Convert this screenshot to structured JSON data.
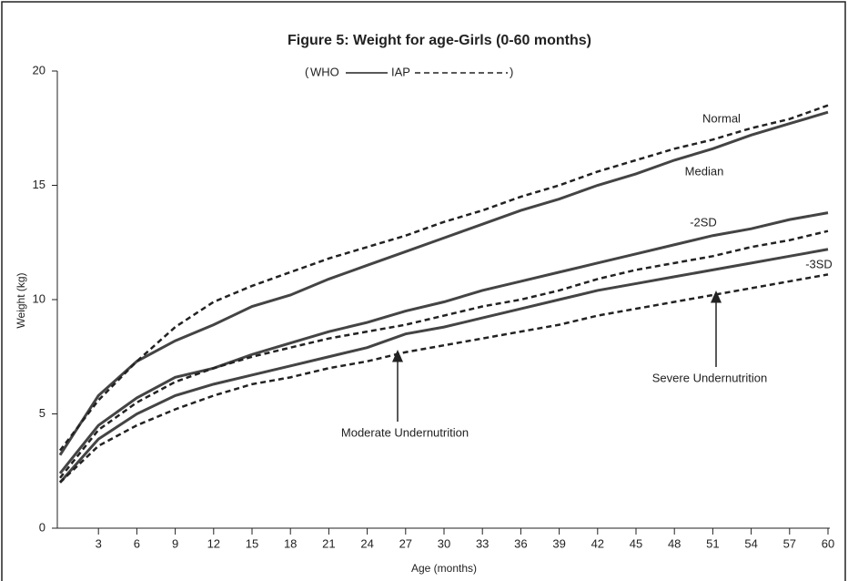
{
  "chart_data": {
    "type": "line",
    "title": "Figure 5: Weight for age-Girls (0-60 months)",
    "legend_wrap": [
      "(",
      ")"
    ],
    "legend": [
      {
        "label": "WHO",
        "style": "solid"
      },
      {
        "label": "IAP",
        "style": "dashed"
      }
    ],
    "x_label": "Age (months)",
    "y_label": "Weight (kg)",
    "x": [
      0,
      3,
      6,
      9,
      12,
      15,
      18,
      21,
      24,
      27,
      30,
      33,
      36,
      39,
      42,
      45,
      48,
      51,
      54,
      57,
      60
    ],
    "xlim": [
      0,
      60
    ],
    "xticks": [
      3,
      6,
      9,
      12,
      15,
      18,
      21,
      24,
      27,
      30,
      33,
      36,
      39,
      42,
      45,
      48,
      51,
      54,
      57,
      60
    ],
    "ylim": [
      0,
      20
    ],
    "yticks": [
      0,
      5,
      10,
      15,
      20
    ],
    "series": [
      {
        "name": "Median",
        "style": "solid",
        "color": "#444444",
        "values": [
          3.2,
          5.8,
          7.3,
          8.2,
          8.9,
          9.7,
          10.2,
          10.9,
          11.5,
          12.1,
          12.7,
          13.3,
          13.9,
          14.4,
          15.0,
          15.5,
          16.1,
          16.6,
          17.2,
          17.7,
          18.2
        ]
      },
      {
        "name": "-2SD",
        "style": "solid",
        "color": "#444444",
        "values": [
          2.4,
          4.5,
          5.7,
          6.6,
          7.0,
          7.6,
          8.1,
          8.6,
          9.0,
          9.5,
          9.9,
          10.4,
          10.8,
          11.2,
          11.6,
          12.0,
          12.4,
          12.8,
          13.1,
          13.5,
          13.8
        ]
      },
      {
        "name": "-3SD",
        "style": "solid",
        "color": "#444444",
        "values": [
          2.0,
          3.9,
          5.0,
          5.8,
          6.3,
          6.7,
          7.1,
          7.5,
          7.9,
          8.5,
          8.8,
          9.2,
          9.6,
          10.0,
          10.4,
          10.7,
          11.0,
          11.3,
          11.6,
          11.9,
          12.2
        ]
      },
      {
        "name": "Normal",
        "style": "dashed",
        "color": "#222222",
        "values": [
          3.4,
          5.6,
          7.3,
          8.8,
          9.9,
          10.6,
          11.2,
          11.8,
          12.3,
          12.8,
          13.4,
          13.9,
          14.5,
          15.0,
          15.6,
          16.1,
          16.6,
          17.0,
          17.5,
          17.9,
          18.5
        ]
      },
      {
        "name": "Moderate Undernutrition",
        "style": "dashed",
        "color": "#222222",
        "values": [
          2.2,
          4.3,
          5.5,
          6.4,
          7.0,
          7.5,
          7.9,
          8.3,
          8.6,
          8.9,
          9.3,
          9.7,
          10.0,
          10.4,
          10.9,
          11.3,
          11.6,
          11.9,
          12.3,
          12.6,
          13.0
        ]
      },
      {
        "name": "Severe Undernutrition",
        "style": "dashed",
        "color": "#222222",
        "values": [
          2.0,
          3.6,
          4.5,
          5.2,
          5.8,
          6.3,
          6.6,
          7.0,
          7.3,
          7.7,
          8.0,
          8.3,
          8.6,
          8.9,
          9.3,
          9.6,
          9.9,
          10.2,
          10.5,
          10.8,
          11.1
        ]
      }
    ]
  }
}
